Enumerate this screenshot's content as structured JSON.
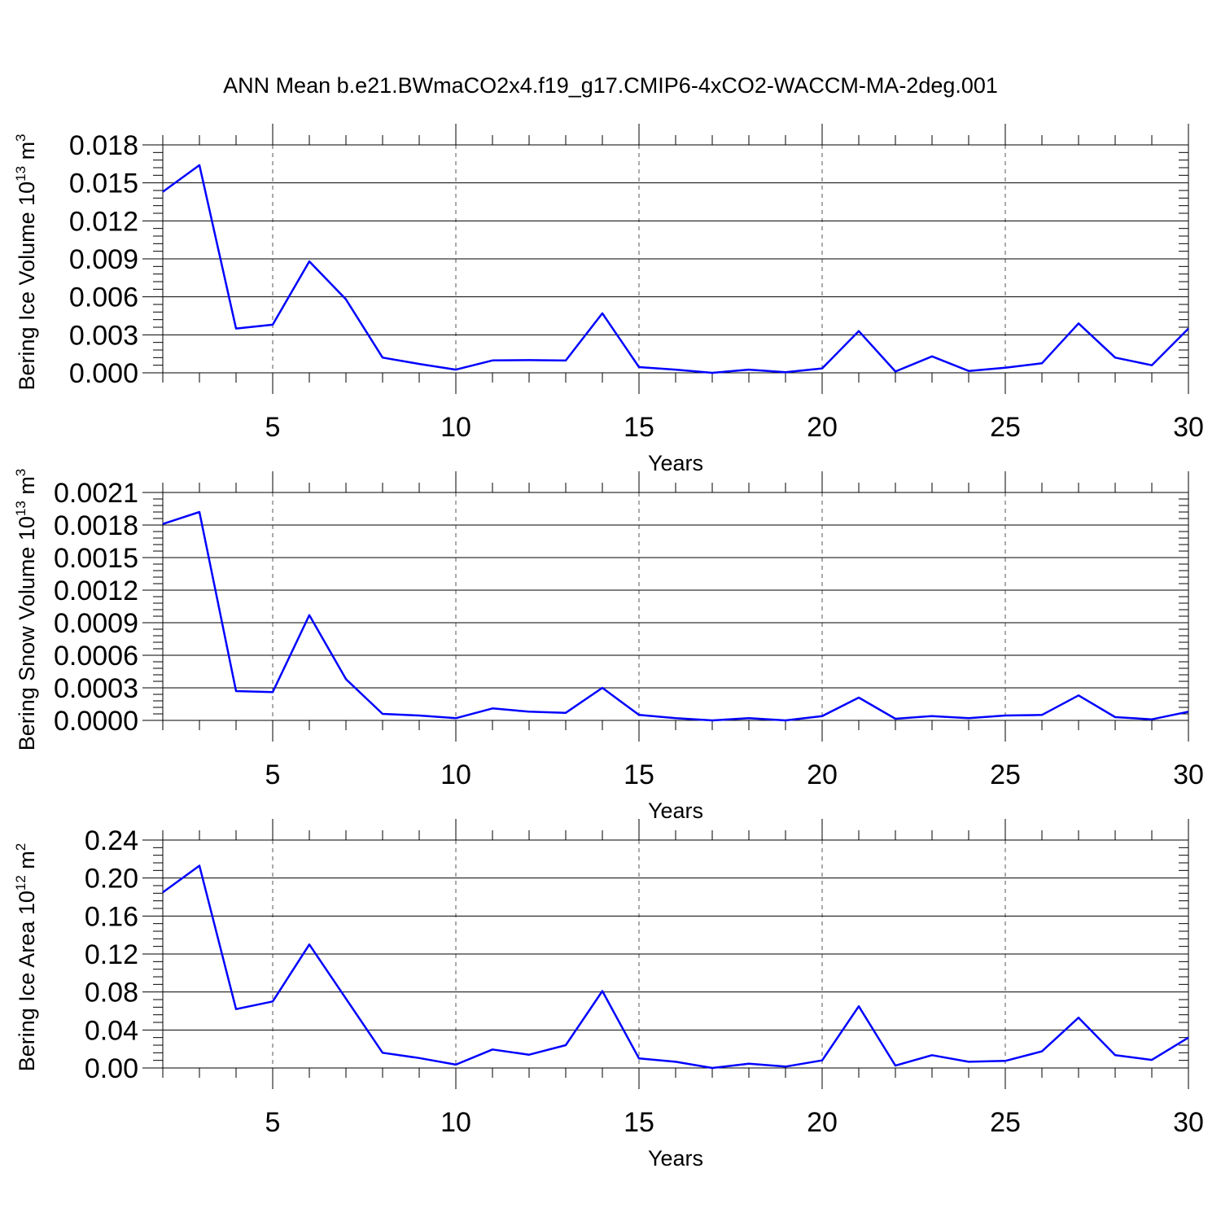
{
  "title": "ANN Mean b.e21.BWmaCO2x4.f19_g17.CMIP6-4xCO2-WACCM-MA-2deg.001",
  "colors": {
    "line": "#0000ff",
    "axis": "#000000",
    "grid": "#555555"
  },
  "chart_data": [
    {
      "type": "line",
      "ylabel": {
        "text": "Bering Ice Volume 10",
        "sup": "13",
        "unit": " m",
        "unit_sup": "3"
      },
      "xlabel": "Years",
      "xlim": [
        2,
        30
      ],
      "ylim": [
        0,
        0.018
      ],
      "xticks": [
        5,
        10,
        15,
        20,
        25,
        30
      ],
      "yticks": [
        0,
        0.003,
        0.006,
        0.009,
        0.012,
        0.015,
        0.018
      ],
      "ytick_labels": [
        "0.000",
        "0.003",
        "0.006",
        "0.009",
        "0.012",
        "0.015",
        "0.018"
      ],
      "grid": "dashed vertical lines at major x ticks",
      "x": [
        2,
        3,
        4,
        5,
        6,
        7,
        8,
        9,
        10,
        11,
        12,
        13,
        14,
        15,
        16,
        17,
        18,
        19,
        20,
        21,
        22,
        23,
        24,
        25,
        26,
        27,
        28,
        29,
        30
      ],
      "y": [
        0.0143,
        0.0164,
        0.0035,
        0.0038,
        0.0088,
        0.0058,
        0.0012,
        0.0007,
        0.00025,
        0.00098,
        0.001,
        0.00097,
        0.0047,
        0.00045,
        0.00025,
        0.0,
        0.00025,
        5e-05,
        0.00035,
        0.0033,
        0.0001,
        0.0013,
        0.00015,
        0.0004,
        0.00075,
        0.0039,
        0.0012,
        0.0006,
        0.0035
      ]
    },
    {
      "type": "line",
      "ylabel": {
        "text": "Bering Snow Volume 10",
        "sup": "13",
        "unit": " m",
        "unit_sup": "3"
      },
      "xlabel": "Years",
      "xlim": [
        2,
        30
      ],
      "ylim": [
        0,
        0.0021
      ],
      "xticks": [
        5,
        10,
        15,
        20,
        25,
        30
      ],
      "yticks": [
        0,
        0.0003,
        0.0006,
        0.0009,
        0.0012,
        0.0015,
        0.0018,
        0.0021
      ],
      "ytick_labels": [
        "0.0000",
        "0.0003",
        "0.0006",
        "0.0009",
        "0.0012",
        "0.0015",
        "0.0018",
        "0.0021"
      ],
      "grid": "dashed vertical lines at major x ticks",
      "x": [
        2,
        3,
        4,
        5,
        6,
        7,
        8,
        9,
        10,
        11,
        12,
        13,
        14,
        15,
        16,
        17,
        18,
        19,
        20,
        21,
        22,
        23,
        24,
        25,
        26,
        27,
        28,
        29,
        30
      ],
      "y": [
        0.00181,
        0.00192,
        0.00027,
        0.00026,
        0.00097,
        0.00038,
        6e-05,
        4.5e-05,
        2e-05,
        0.00011,
        8e-05,
        7e-05,
        0.0003,
        5e-05,
        2e-05,
        0.0,
        2e-05,
        0.0,
        4e-05,
        0.00021,
        1.5e-05,
        4e-05,
        2e-05,
        4.5e-05,
        5e-05,
        0.00023,
        3e-05,
        1e-05,
        8e-05
      ]
    },
    {
      "type": "line",
      "ylabel": {
        "text": "Bering Ice Area 10",
        "sup": "12",
        "unit": " m",
        "unit_sup": "2"
      },
      "xlabel": "Years",
      "xlim": [
        2,
        30
      ],
      "ylim": [
        0,
        0.24
      ],
      "xticks": [
        5,
        10,
        15,
        20,
        25,
        30
      ],
      "yticks": [
        0,
        0.04,
        0.08,
        0.12,
        0.16,
        0.2,
        0.24
      ],
      "ytick_labels": [
        "0.00",
        "0.04",
        "0.08",
        "0.12",
        "0.16",
        "0.20",
        "0.24"
      ],
      "grid": "dashed vertical lines at major x ticks",
      "x": [
        2,
        3,
        4,
        5,
        6,
        7,
        8,
        9,
        10,
        11,
        12,
        13,
        14,
        15,
        16,
        17,
        18,
        19,
        20,
        21,
        22,
        23,
        24,
        25,
        26,
        27,
        28,
        29,
        30
      ],
      "y": [
        0.185,
        0.213,
        0.062,
        0.07,
        0.13,
        0.073,
        0.016,
        0.0105,
        0.0035,
        0.0195,
        0.014,
        0.024,
        0.081,
        0.01,
        0.0065,
        0.0,
        0.0045,
        0.0015,
        0.008,
        0.065,
        0.0025,
        0.0135,
        0.0065,
        0.0075,
        0.0175,
        0.053,
        0.0135,
        0.0085,
        0.032
      ]
    }
  ]
}
